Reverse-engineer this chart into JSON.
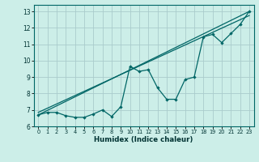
{
  "title": "",
  "xlabel": "Humidex (Indice chaleur)",
  "bg_color": "#cceee8",
  "grid_color": "#aacccc",
  "line_color": "#006666",
  "xlim": [
    -0.5,
    23.5
  ],
  "ylim": [
    6.0,
    13.4
  ],
  "yticks": [
    6,
    7,
    8,
    9,
    10,
    11,
    12,
    13
  ],
  "xticks": [
    0,
    1,
    2,
    3,
    4,
    5,
    6,
    7,
    8,
    9,
    10,
    11,
    12,
    13,
    14,
    15,
    16,
    17,
    18,
    19,
    20,
    21,
    22,
    23
  ],
  "line1_x": [
    0,
    1,
    2,
    3,
    4,
    5,
    6,
    7,
    8,
    9,
    10,
    11,
    12,
    13,
    14,
    15,
    16,
    17,
    18,
    19,
    20,
    21,
    22,
    23
  ],
  "line1_y": [
    6.7,
    6.85,
    6.85,
    6.65,
    6.55,
    6.55,
    6.75,
    7.0,
    6.6,
    7.2,
    9.65,
    9.35,
    9.45,
    8.35,
    7.65,
    7.65,
    8.85,
    9.0,
    11.45,
    11.6,
    11.1,
    11.65,
    12.2,
    13.0
  ],
  "line2_x": [
    0,
    23
  ],
  "line2_y": [
    6.7,
    13.0
  ],
  "line3_x": [
    0,
    23
  ],
  "line3_y": [
    6.85,
    12.75
  ]
}
